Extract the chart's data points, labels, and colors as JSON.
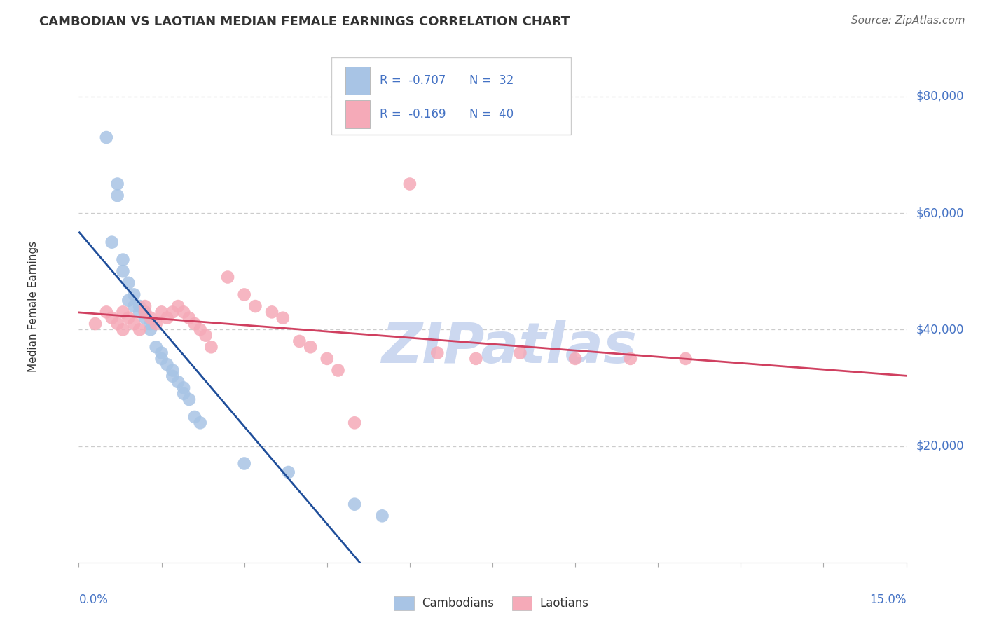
{
  "title": "CAMBODIAN VS LAOTIAN MEDIAN FEMALE EARNINGS CORRELATION CHART",
  "source": "Source: ZipAtlas.com",
  "ylabel": "Median Female Earnings",
  "xlim": [
    0.0,
    0.15
  ],
  "ylim": [
    0,
    88000
  ],
  "yticks": [
    20000,
    40000,
    60000,
    80000
  ],
  "ytick_labels": [
    "$20,000",
    "$40,000",
    "$60,000",
    "$80,000"
  ],
  "xticks": [
    0.0,
    0.015,
    0.03,
    0.045,
    0.06,
    0.075,
    0.09,
    0.105,
    0.12,
    0.135,
    0.15
  ],
  "background_color": "#ffffff",
  "grid_color": "#cccccc",
  "title_color": "#333333",
  "axis_color": "#4472c4",
  "source_color": "#666666",
  "cambodian_color": "#a8c4e5",
  "laotian_color": "#f5aab8",
  "cambodian_line_color": "#1f4e9a",
  "laotian_line_color": "#d04060",
  "R_cambodian": -0.707,
  "N_cambodian": 32,
  "R_laotian": -0.169,
  "N_laotian": 40,
  "cambodian_x": [
    0.005,
    0.006,
    0.007,
    0.007,
    0.008,
    0.008,
    0.009,
    0.009,
    0.01,
    0.01,
    0.011,
    0.011,
    0.012,
    0.012,
    0.013,
    0.013,
    0.014,
    0.015,
    0.015,
    0.016,
    0.017,
    0.017,
    0.018,
    0.019,
    0.019,
    0.02,
    0.021,
    0.022,
    0.03,
    0.038,
    0.05,
    0.055
  ],
  "cambodian_y": [
    73000,
    55000,
    65000,
    63000,
    52000,
    50000,
    48000,
    45000,
    46000,
    44000,
    44000,
    43000,
    43000,
    42000,
    41000,
    40000,
    37000,
    36000,
    35000,
    34000,
    33000,
    32000,
    31000,
    30000,
    29000,
    28000,
    25000,
    24000,
    17000,
    15500,
    10000,
    8000
  ],
  "laotian_x": [
    0.003,
    0.005,
    0.006,
    0.007,
    0.008,
    0.008,
    0.009,
    0.01,
    0.011,
    0.012,
    0.012,
    0.013,
    0.014,
    0.015,
    0.016,
    0.017,
    0.018,
    0.019,
    0.02,
    0.021,
    0.022,
    0.023,
    0.024,
    0.027,
    0.03,
    0.032,
    0.035,
    0.037,
    0.04,
    0.042,
    0.045,
    0.047,
    0.05,
    0.06,
    0.065,
    0.072,
    0.08,
    0.09,
    0.1,
    0.11
  ],
  "laotian_y": [
    41000,
    43000,
    42000,
    41000,
    43000,
    40000,
    42000,
    41000,
    40000,
    44000,
    43000,
    42000,
    41000,
    43000,
    42000,
    43000,
    44000,
    43000,
    42000,
    41000,
    40000,
    39000,
    37000,
    49000,
    46000,
    44000,
    43000,
    42000,
    38000,
    37000,
    35000,
    33000,
    24000,
    65000,
    36000,
    35000,
    36000,
    35000,
    35000,
    35000
  ],
  "watermark": "ZIPatlas",
  "watermark_color": "#ccd8f0",
  "legend_cambodian_label": "Cambodians",
  "legend_laotian_label": "Laotians"
}
